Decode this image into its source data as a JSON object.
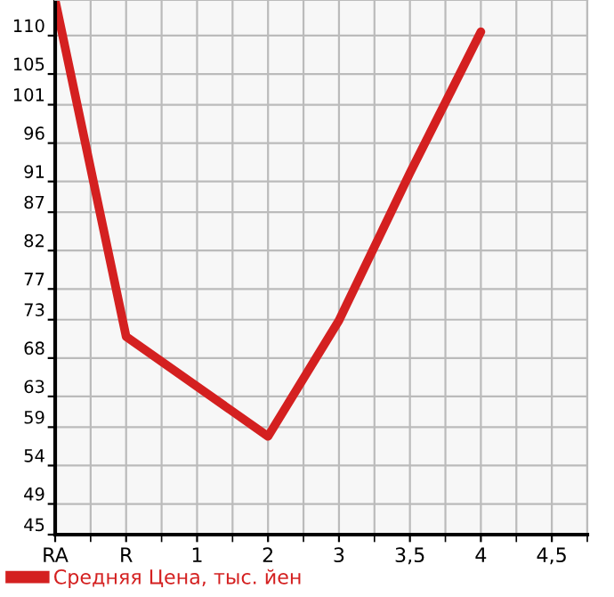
{
  "chart_data": {
    "type": "line",
    "categories": [
      "RA",
      "R",
      "1",
      "2",
      "3",
      "3,5",
      "4",
      "4,5"
    ],
    "series": [
      {
        "name": "Средняя Цена, тыс. йен",
        "color": "#d42020",
        "values": [
          114.6,
          70.8,
          64.3,
          57.8,
          72.9,
          92.1,
          110.5,
          null
        ]
      }
    ],
    "ylim": [
      45,
      114.64
    ],
    "yticks": [
      45,
      49,
      54,
      59,
      63,
      68,
      73,
      77,
      82,
      87,
      91,
      96,
      101,
      105,
      110
    ],
    "grid": true,
    "legend": "bottom",
    "marker": "none",
    "line_style": "solid"
  }
}
